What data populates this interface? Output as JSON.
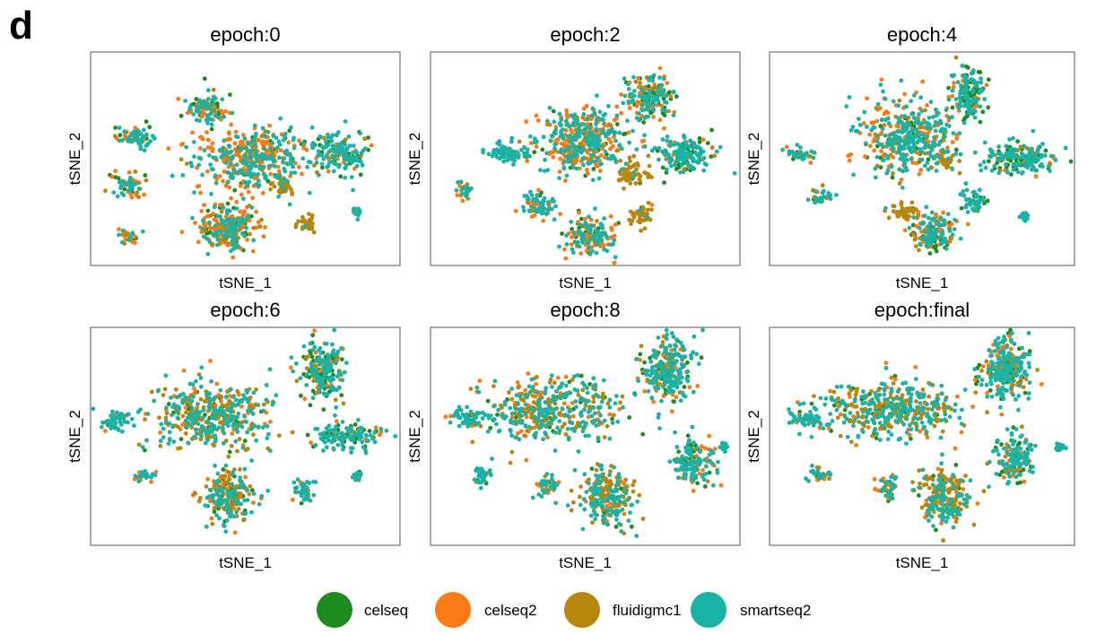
{
  "panel_label": "d",
  "colors": {
    "celseq": "#1e8b1e",
    "celseq2": "#fb7a14",
    "fluidigmc1": "#b8860b",
    "smartseq2": "#19b3a5"
  },
  "legend": {
    "position": "bottom-center",
    "items": [
      "celseq",
      "celseq2",
      "fluidigmc1",
      "smartseq2"
    ]
  },
  "chart_data": [
    {
      "type": "scatter",
      "title": "epoch:0",
      "xlabel": "tSNE_1",
      "ylabel": "tSNE_2",
      "grid": false,
      "series": [
        {
          "name": "celseq"
        },
        {
          "name": "celseq2"
        },
        {
          "name": "fluidigmc1"
        },
        {
          "name": "smartseq2"
        }
      ],
      "clusters": [
        {
          "c": [
            0.38,
            0.27
          ],
          "r": [
            0.07,
            0.08
          ],
          "mix": {
            "celseq": 0.25,
            "celseq2": 0.3,
            "fluidigmc1": 0.05,
            "smartseq2": 0.4
          }
        },
        {
          "c": [
            0.52,
            0.5
          ],
          "r": [
            0.2,
            0.17
          ],
          "mix": {
            "celseq": 0.12,
            "celseq2": 0.4,
            "fluidigmc1": 0.05,
            "smartseq2": 0.43
          }
        },
        {
          "c": [
            0.14,
            0.4
          ],
          "r": [
            0.065,
            0.055
          ],
          "mix": {
            "celseq": 0.1,
            "celseq2": 0.3,
            "fluidigmc1": 0.1,
            "smartseq2": 0.5
          }
        },
        {
          "c": [
            0.12,
            0.62
          ],
          "r": [
            0.055,
            0.06
          ],
          "mix": {
            "celseq": 0.15,
            "celseq2": 0.35,
            "fluidigmc1": 0.15,
            "smartseq2": 0.35
          }
        },
        {
          "c": [
            0.12,
            0.86
          ],
          "r": [
            0.035,
            0.04
          ],
          "mix": {
            "celseq": 0.1,
            "celseq2": 0.4,
            "fluidigmc1": 0.1,
            "smartseq2": 0.4
          }
        },
        {
          "c": [
            0.45,
            0.83
          ],
          "r": [
            0.11,
            0.12
          ],
          "mix": {
            "celseq": 0.12,
            "celseq2": 0.45,
            "fluidigmc1": 0.1,
            "smartseq2": 0.33
          }
        },
        {
          "c": [
            0.62,
            0.63
          ],
          "r": [
            0.04,
            0.05
          ],
          "mix": {
            "celseq": 0.05,
            "celseq2": 0.1,
            "fluidigmc1": 0.8,
            "smartseq2": 0.05
          }
        },
        {
          "c": [
            0.7,
            0.8
          ],
          "r": [
            0.035,
            0.05
          ],
          "mix": {
            "celseq": 0.05,
            "celseq2": 0.1,
            "fluidigmc1": 0.8,
            "smartseq2": 0.05
          }
        },
        {
          "c": [
            0.8,
            0.47
          ],
          "r": [
            0.09,
            0.1
          ],
          "mix": {
            "celseq": 0.25,
            "celseq2": 0.1,
            "fluidigmc1": 0.05,
            "smartseq2": 0.6
          }
        },
        {
          "c": [
            0.86,
            0.75
          ],
          "r": [
            0.015,
            0.02
          ],
          "mix": {
            "celseq": 0.1,
            "celseq2": 0.1,
            "fluidigmc1": 0.1,
            "smartseq2": 0.7
          }
        }
      ]
    },
    {
      "type": "scatter",
      "title": "epoch:2",
      "xlabel": "tSNE_1",
      "ylabel": "tSNE_2",
      "grid": false,
      "series": [
        {
          "name": "celseq"
        },
        {
          "name": "celseq2"
        },
        {
          "name": "fluidigmc1"
        },
        {
          "name": "smartseq2"
        }
      ],
      "clusters": [
        {
          "c": [
            0.5,
            0.42
          ],
          "r": [
            0.16,
            0.16
          ],
          "mix": {
            "celseq": 0.1,
            "celseq2": 0.4,
            "fluidigmc1": 0.05,
            "smartseq2": 0.45
          }
        },
        {
          "c": [
            0.7,
            0.22
          ],
          "r": [
            0.08,
            0.12
          ],
          "mix": {
            "celseq": 0.3,
            "celseq2": 0.25,
            "fluidigmc1": 0.05,
            "smartseq2": 0.4
          }
        },
        {
          "c": [
            0.82,
            0.48
          ],
          "r": [
            0.1,
            0.09
          ],
          "mix": {
            "celseq": 0.25,
            "celseq2": 0.1,
            "fluidigmc1": 0.05,
            "smartseq2": 0.6
          }
        },
        {
          "c": [
            0.65,
            0.57
          ],
          "r": [
            0.05,
            0.06
          ],
          "mix": {
            "celseq": 0.05,
            "celseq2": 0.1,
            "fluidigmc1": 0.8,
            "smartseq2": 0.05
          }
        },
        {
          "c": [
            0.25,
            0.47
          ],
          "r": [
            0.07,
            0.055
          ],
          "mix": {
            "celseq": 0.05,
            "celseq2": 0.1,
            "fluidigmc1": 0.05,
            "smartseq2": 0.8
          }
        },
        {
          "c": [
            0.11,
            0.65
          ],
          "r": [
            0.035,
            0.045
          ],
          "mix": {
            "celseq": 0.1,
            "celseq2": 0.3,
            "fluidigmc1": 0.1,
            "smartseq2": 0.5
          }
        },
        {
          "c": [
            0.35,
            0.72
          ],
          "r": [
            0.06,
            0.07
          ],
          "mix": {
            "celseq": 0.1,
            "celseq2": 0.25,
            "fluidigmc1": 0.05,
            "smartseq2": 0.6
          }
        },
        {
          "c": [
            0.52,
            0.86
          ],
          "r": [
            0.09,
            0.1
          ],
          "mix": {
            "celseq": 0.12,
            "celseq2": 0.4,
            "fluidigmc1": 0.05,
            "smartseq2": 0.43
          }
        },
        {
          "c": [
            0.68,
            0.76
          ],
          "r": [
            0.04,
            0.06
          ],
          "mix": {
            "celseq": 0.05,
            "celseq2": 0.05,
            "fluidigmc1": 0.85,
            "smartseq2": 0.05
          }
        }
      ]
    },
    {
      "type": "scatter",
      "title": "epoch:4",
      "xlabel": "tSNE_1",
      "ylabel": "tSNE_2",
      "grid": false,
      "series": [
        {
          "name": "celseq"
        },
        {
          "name": "celseq2"
        },
        {
          "name": "fluidigmc1"
        },
        {
          "name": "smartseq2"
        }
      ],
      "clusters": [
        {
          "c": [
            0.45,
            0.4
          ],
          "r": [
            0.17,
            0.18
          ],
          "mix": {
            "celseq": 0.08,
            "celseq2": 0.3,
            "fluidigmc1": 0.07,
            "smartseq2": 0.55
          }
        },
        {
          "c": [
            0.65,
            0.2
          ],
          "r": [
            0.06,
            0.14
          ],
          "mix": {
            "celseq": 0.35,
            "celseq2": 0.1,
            "fluidigmc1": 0.05,
            "smartseq2": 0.5
          }
        },
        {
          "c": [
            0.81,
            0.5
          ],
          "r": [
            0.13,
            0.08
          ],
          "mix": {
            "celseq": 0.25,
            "celseq2": 0.05,
            "fluidigmc1": 0.05,
            "smartseq2": 0.65
          }
        },
        {
          "c": [
            0.58,
            0.51
          ],
          "r": [
            0.04,
            0.05
          ],
          "mix": {
            "celseq": 0.05,
            "celseq2": 0.05,
            "fluidigmc1": 0.85,
            "smartseq2": 0.05
          }
        },
        {
          "c": [
            0.1,
            0.48
          ],
          "r": [
            0.05,
            0.045
          ],
          "mix": {
            "celseq": 0.05,
            "celseq2": 0.15,
            "fluidigmc1": 0.1,
            "smartseq2": 0.7
          }
        },
        {
          "c": [
            0.17,
            0.68
          ],
          "r": [
            0.04,
            0.04
          ],
          "mix": {
            "celseq": 0.05,
            "celseq2": 0.2,
            "fluidigmc1": 0.05,
            "smartseq2": 0.7
          }
        },
        {
          "c": [
            0.44,
            0.75
          ],
          "r": [
            0.06,
            0.04
          ],
          "mix": {
            "celseq": 0.05,
            "celseq2": 0.05,
            "fluidigmc1": 0.85,
            "smartseq2": 0.05
          }
        },
        {
          "c": [
            0.54,
            0.85
          ],
          "r": [
            0.08,
            0.11
          ],
          "mix": {
            "celseq": 0.2,
            "celseq2": 0.3,
            "fluidigmc1": 0.05,
            "smartseq2": 0.45
          }
        },
        {
          "c": [
            0.67,
            0.7
          ],
          "r": [
            0.05,
            0.06
          ],
          "mix": {
            "celseq": 0.1,
            "celseq2": 0.15,
            "fluidigmc1": 0.05,
            "smartseq2": 0.7
          }
        },
        {
          "c": [
            0.84,
            0.77
          ],
          "r": [
            0.015,
            0.02
          ],
          "mix": {
            "celseq": 0.05,
            "celseq2": 0.05,
            "fluidigmc1": 0.05,
            "smartseq2": 0.85
          }
        }
      ]
    },
    {
      "type": "scatter",
      "title": "epoch:6",
      "xlabel": "tSNE_1",
      "ylabel": "tSNE_2",
      "grid": false,
      "series": [
        {
          "name": "celseq"
        },
        {
          "name": "celseq2"
        },
        {
          "name": "fluidigmc1"
        },
        {
          "name": "smartseq2"
        }
      ],
      "clusters": [
        {
          "c": [
            0.4,
            0.4
          ],
          "r": [
            0.2,
            0.17
          ],
          "mix": {
            "celseq": 0.08,
            "celseq2": 0.15,
            "fluidigmc1": 0.35,
            "smartseq2": 0.42
          }
        },
        {
          "c": [
            0.75,
            0.2
          ],
          "r": [
            0.08,
            0.15
          ],
          "mix": {
            "celseq": 0.35,
            "celseq2": 0.15,
            "fluidigmc1": 0.05,
            "smartseq2": 0.45
          }
        },
        {
          "c": [
            0.83,
            0.5
          ],
          "r": [
            0.13,
            0.06
          ],
          "mix": {
            "celseq": 0.2,
            "celseq2": 0.1,
            "fluidigmc1": 0.05,
            "smartseq2": 0.65
          }
        },
        {
          "c": [
            0.08,
            0.43
          ],
          "r": [
            0.06,
            0.045
          ],
          "mix": {
            "celseq": 0.05,
            "celseq2": 0.1,
            "fluidigmc1": 0.05,
            "smartseq2": 0.8
          }
        },
        {
          "c": [
            0.17,
            0.68
          ],
          "r": [
            0.04,
            0.03
          ],
          "mix": {
            "celseq": 0.05,
            "celseq2": 0.2,
            "fluidigmc1": 0.05,
            "smartseq2": 0.7
          }
        },
        {
          "c": [
            0.45,
            0.78
          ],
          "r": [
            0.09,
            0.13
          ],
          "mix": {
            "celseq": 0.12,
            "celseq2": 0.15,
            "fluidigmc1": 0.3,
            "smartseq2": 0.43
          }
        },
        {
          "c": [
            0.69,
            0.76
          ],
          "r": [
            0.04,
            0.06
          ],
          "mix": {
            "celseq": 0.05,
            "celseq2": 0.1,
            "fluidigmc1": 0.1,
            "smartseq2": 0.75
          }
        },
        {
          "c": [
            0.86,
            0.68
          ],
          "r": [
            0.015,
            0.02
          ],
          "mix": {
            "celseq": 0.05,
            "celseq2": 0.05,
            "fluidigmc1": 0.05,
            "smartseq2": 0.85
          }
        }
      ]
    },
    {
      "type": "scatter",
      "title": "epoch:8",
      "xlabel": "tSNE_1",
      "ylabel": "tSNE_2",
      "grid": false,
      "series": [
        {
          "name": "celseq"
        },
        {
          "name": "celseq2"
        },
        {
          "name": "fluidigmc1"
        },
        {
          "name": "smartseq2"
        }
      ],
      "clusters": [
        {
          "c": [
            0.4,
            0.38
          ],
          "r": [
            0.27,
            0.16
          ],
          "mix": {
            "celseq": 0.07,
            "celseq2": 0.15,
            "fluidigmc1": 0.3,
            "smartseq2": 0.48
          }
        },
        {
          "c": [
            0.77,
            0.2
          ],
          "r": [
            0.09,
            0.16
          ],
          "mix": {
            "celseq": 0.15,
            "celseq2": 0.2,
            "fluidigmc1": 0.05,
            "smartseq2": 0.6
          }
        },
        {
          "c": [
            0.85,
            0.62
          ],
          "r": [
            0.07,
            0.12
          ],
          "mix": {
            "celseq": 0.2,
            "celseq2": 0.15,
            "fluidigmc1": 0.05,
            "smartseq2": 0.6
          }
        },
        {
          "c": [
            0.12,
            0.42
          ],
          "r": [
            0.06,
            0.05
          ],
          "mix": {
            "celseq": 0.05,
            "celseq2": 0.15,
            "fluidigmc1": 0.05,
            "smartseq2": 0.75
          }
        },
        {
          "c": [
            0.17,
            0.68
          ],
          "r": [
            0.04,
            0.045
          ],
          "mix": {
            "celseq": 0.05,
            "celseq2": 0.2,
            "fluidigmc1": 0.1,
            "smartseq2": 0.65
          }
        },
        {
          "c": [
            0.38,
            0.73
          ],
          "r": [
            0.04,
            0.06
          ],
          "mix": {
            "celseq": 0.05,
            "celseq2": 0.2,
            "fluidigmc1": 0.15,
            "smartseq2": 0.6
          }
        },
        {
          "c": [
            0.57,
            0.78
          ],
          "r": [
            0.09,
            0.14
          ],
          "mix": {
            "celseq": 0.05,
            "celseq2": 0.15,
            "fluidigmc1": 0.4,
            "smartseq2": 0.4
          }
        },
        {
          "c": [
            0.95,
            0.55
          ],
          "r": [
            0.015,
            0.02
          ],
          "mix": {
            "celseq": 0.05,
            "celseq2": 0.05,
            "fluidigmc1": 0.05,
            "smartseq2": 0.85
          }
        }
      ]
    },
    {
      "type": "scatter",
      "title": "epoch:final",
      "xlabel": "tSNE_1",
      "ylabel": "tSNE_2",
      "grid": false,
      "series": [
        {
          "name": "celseq"
        },
        {
          "name": "celseq2"
        },
        {
          "name": "fluidigmc1"
        },
        {
          "name": "smartseq2"
        }
      ],
      "clusters": [
        {
          "c": [
            0.4,
            0.38
          ],
          "r": [
            0.27,
            0.16
          ],
          "mix": {
            "celseq": 0.07,
            "celseq2": 0.15,
            "fluidigmc1": 0.3,
            "smartseq2": 0.48
          }
        },
        {
          "c": [
            0.77,
            0.2
          ],
          "r": [
            0.09,
            0.16
          ],
          "mix": {
            "celseq": 0.15,
            "celseq2": 0.2,
            "fluidigmc1": 0.05,
            "smartseq2": 0.6
          }
        },
        {
          "c": [
            0.8,
            0.6
          ],
          "r": [
            0.07,
            0.12
          ],
          "mix": {
            "celseq": 0.25,
            "celseq2": 0.15,
            "fluidigmc1": 0.05,
            "smartseq2": 0.55
          }
        },
        {
          "c": [
            0.12,
            0.42
          ],
          "r": [
            0.06,
            0.05
          ],
          "mix": {
            "celseq": 0.05,
            "celseq2": 0.15,
            "fluidigmc1": 0.05,
            "smartseq2": 0.75
          }
        },
        {
          "c": [
            0.17,
            0.68
          ],
          "r": [
            0.04,
            0.045
          ],
          "mix": {
            "celseq": 0.05,
            "celseq2": 0.2,
            "fluidigmc1": 0.1,
            "smartseq2": 0.65
          }
        },
        {
          "c": [
            0.38,
            0.73
          ],
          "r": [
            0.04,
            0.06
          ],
          "mix": {
            "celseq": 0.05,
            "celseq2": 0.2,
            "fluidigmc1": 0.15,
            "smartseq2": 0.6
          }
        },
        {
          "c": [
            0.57,
            0.78
          ],
          "r": [
            0.09,
            0.14
          ],
          "mix": {
            "celseq": 0.05,
            "celseq2": 0.15,
            "fluidigmc1": 0.4,
            "smartseq2": 0.4
          }
        },
        {
          "c": [
            0.95,
            0.55
          ],
          "r": [
            0.015,
            0.02
          ],
          "mix": {
            "celseq": 0.05,
            "celseq2": 0.05,
            "fluidigmc1": 0.05,
            "smartseq2": 0.85
          }
        }
      ]
    }
  ]
}
